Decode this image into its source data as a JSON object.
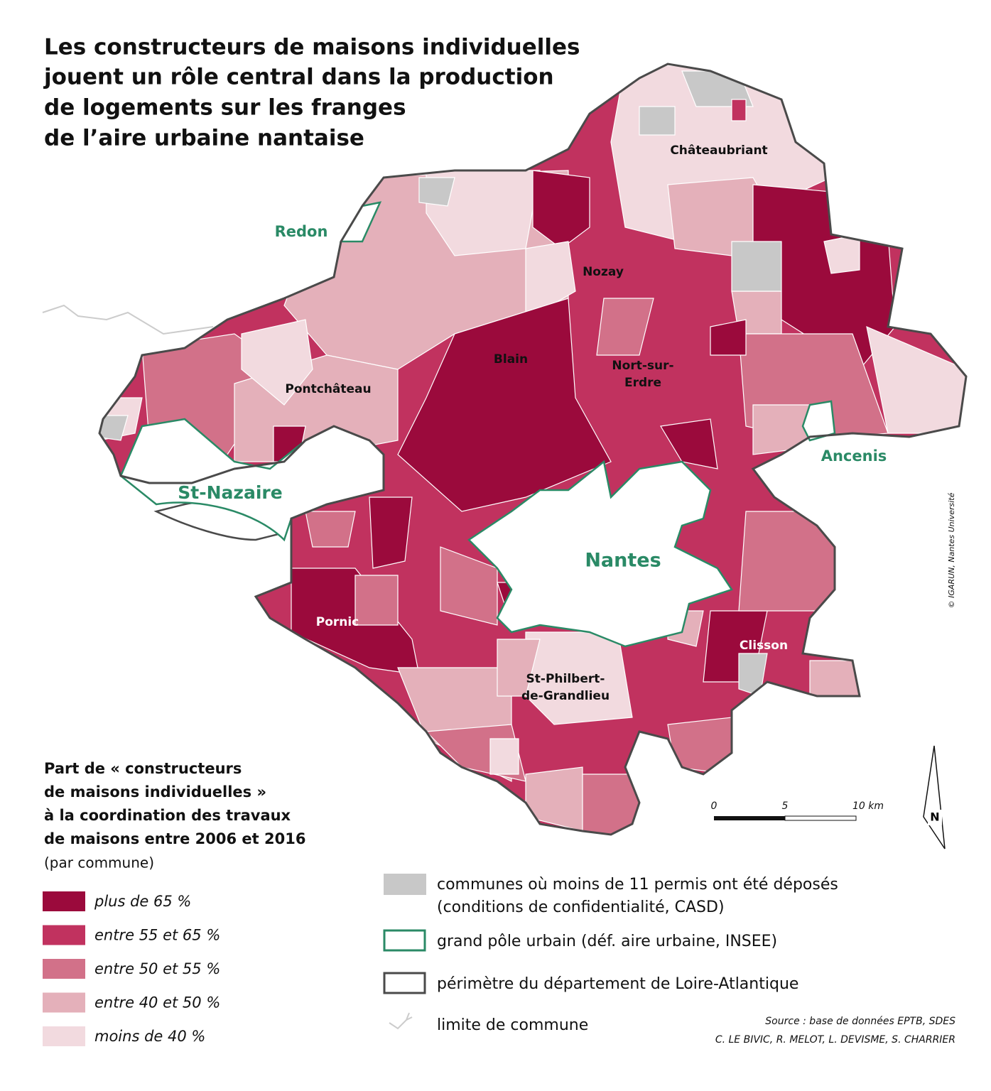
{
  "title": [
    "Les constructeurs de maisons individuelles",
    "jouent un rôle central dans la production",
    "de logements sur les franges",
    "de l’aire urbaine nantaise"
  ],
  "places": {
    "chateaubriant": "Châteaubriant",
    "redon": "Redon",
    "nozay": "Nozay",
    "blain": "Blain",
    "nort": [
      "Nort-sur-",
      "Erdre"
    ],
    "pontchateau": "Pontchâteau",
    "st_nazaire": "St-Nazaire",
    "ancenis": "Ancenis",
    "nantes": "Nantes",
    "pornic": "Pornic",
    "clisson": "Clisson",
    "st_philbert": [
      "St-Philbert-",
      "de-Grandlieu"
    ]
  },
  "legend": {
    "title": [
      "Part de « constructeurs",
      "de maisons individuelles »",
      "à la coordination des travaux",
      "de maisons entre 2006 et 2016"
    ],
    "subtitle": "(par commune)",
    "classes": [
      {
        "label": "plus de 65 %",
        "color": "#9b0a3c"
      },
      {
        "label": "entre 55 et 65 %",
        "color": "#c1325f"
      },
      {
        "label": "entre 50 et 55 %",
        "color": "#d27189"
      },
      {
        "label": "entre 40 et 50 %",
        "color": "#e4b0ba"
      },
      {
        "label": "moins de 40 %",
        "color": "#f2dadf"
      }
    ],
    "others": [
      {
        "label": [
          "communes où moins de 11 permis ont été déposés",
          "(conditions de confidentialité, CASD)"
        ],
        "color": "#c8c8c8"
      },
      {
        "label": [
          "grand pôle urbain (déf. aire urbaine, INSEE)"
        ],
        "color": "#2a8a66"
      },
      {
        "label": [
          "périmètre du département de Loire-Atlantique"
        ],
        "color": "#4a4a4a"
      },
      {
        "label": [
          "limite de commune"
        ],
        "color": "#cccccc"
      }
    ]
  },
  "scale": [
    "0",
    "5",
    "10 km"
  ],
  "north": "N",
  "credit": "© IGARUN, Nantes Université",
  "source": [
    "Source : base de données EPTB, SDES",
    "C. LE BIVIC, R. MELOT, L. DEVISME, S. CHARRIER"
  ]
}
